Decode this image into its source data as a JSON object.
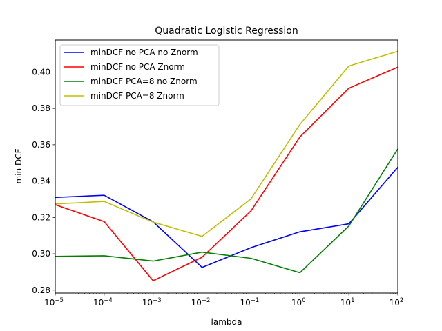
{
  "chart_data": {
    "type": "line",
    "title": "Quadratic Logistic Regression",
    "xlabel": "lambda",
    "ylabel": "min DCF",
    "xscale": "log",
    "x": [
      1e-05,
      0.0001,
      0.001,
      0.01,
      0.1,
      1,
      10,
      100
    ],
    "xlim": [
      1e-05,
      100
    ],
    "ylim": [
      0.2784,
      0.4176
    ],
    "x_ticks": [
      {
        "value": 1e-05,
        "base": "10",
        "exp": "−5"
      },
      {
        "value": 0.0001,
        "base": "10",
        "exp": "−4"
      },
      {
        "value": 0.001,
        "base": "10",
        "exp": "−3"
      },
      {
        "value": 0.01,
        "base": "10",
        "exp": "−2"
      },
      {
        "value": 0.1,
        "base": "10",
        "exp": "−1"
      },
      {
        "value": 1,
        "base": "10",
        "exp": "0"
      },
      {
        "value": 10,
        "base": "10",
        "exp": "1"
      },
      {
        "value": 100,
        "base": "10",
        "exp": "2"
      }
    ],
    "y_ticks": [
      {
        "value": 0.28,
        "label": "0.28"
      },
      {
        "value": 0.3,
        "label": "0.30"
      },
      {
        "value": 0.32,
        "label": "0.32"
      },
      {
        "value": 0.34,
        "label": "0.34"
      },
      {
        "value": 0.36,
        "label": "0.36"
      },
      {
        "value": 0.38,
        "label": "0.38"
      },
      {
        "value": 0.4,
        "label": "0.40"
      }
    ],
    "legend_position": "top-left",
    "grid": false,
    "series": [
      {
        "name": "minDCF no PCA no Znorm",
        "color": "#0000ff",
        "values": [
          0.331,
          0.3322,
          0.3176,
          0.2925,
          0.3034,
          0.3121,
          0.3165,
          0.3476
        ]
      },
      {
        "name": "minDCF no PCA Znorm",
        "color": "#ff0000",
        "values": [
          0.327,
          0.3177,
          0.2852,
          0.2981,
          0.3236,
          0.3643,
          0.3911,
          0.4027
        ]
      },
      {
        "name": "minDCF PCA=8 no Znorm",
        "color": "#008000",
        "values": [
          0.2986,
          0.2989,
          0.296,
          0.3009,
          0.2975,
          0.2896,
          0.3153,
          0.3577
        ]
      },
      {
        "name": "minDCF PCA=8 Znorm",
        "color": "#bfbf00",
        "values": [
          0.3274,
          0.3288,
          0.3174,
          0.3096,
          0.3302,
          0.3712,
          0.4033,
          0.4114
        ]
      }
    ]
  }
}
